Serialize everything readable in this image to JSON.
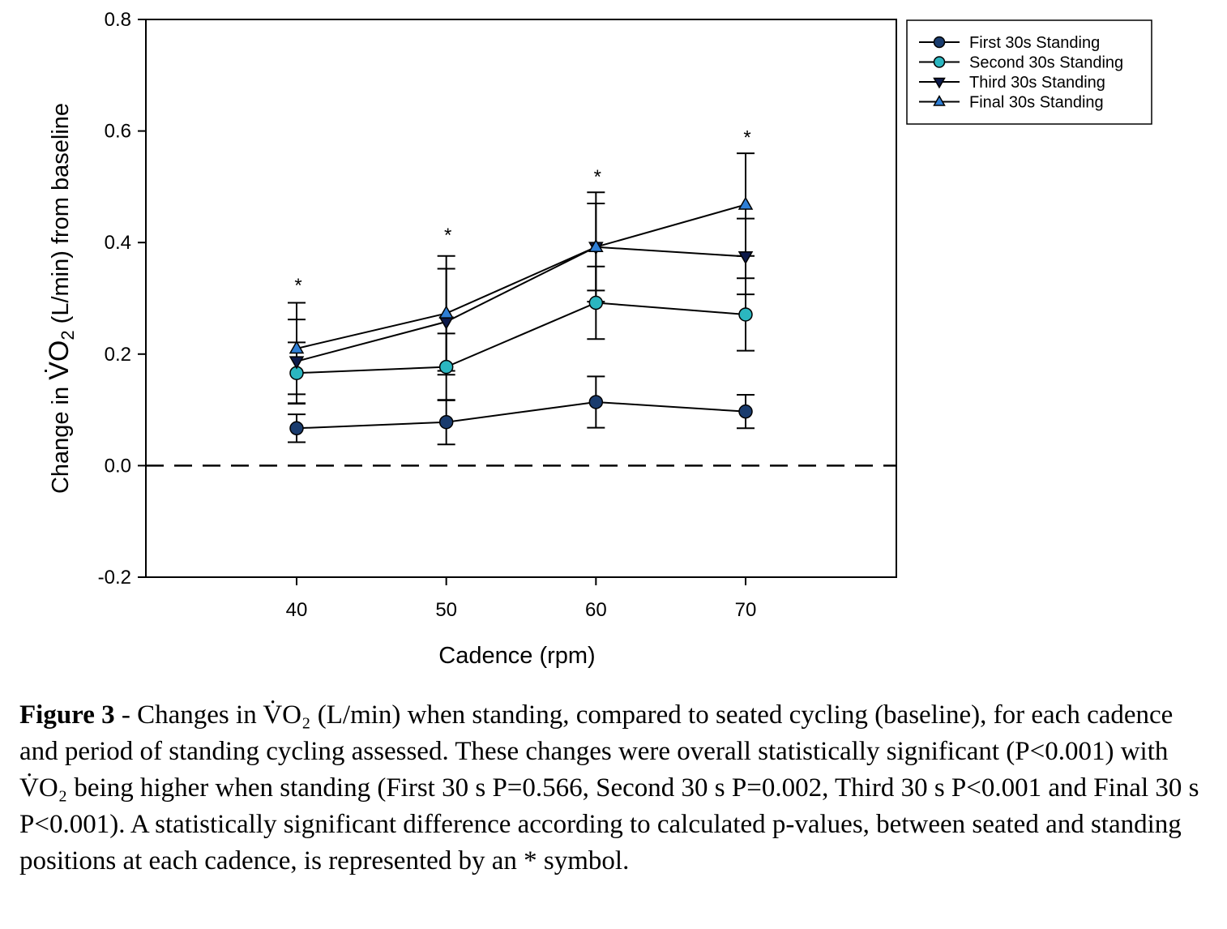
{
  "chart_data": {
    "type": "line",
    "xlabel": "Cadence (rpm)",
    "ylabel": {
      "prefix": "Change in ",
      "symbol": "V̇O",
      "subscript": "2",
      "suffix": " (L/min) from baseline"
    },
    "x": [
      40,
      50,
      60,
      70
    ],
    "xlim": [
      30,
      80
    ],
    "ylim": [
      -0.2,
      0.8
    ],
    "x_ticks": [
      "40",
      "50",
      "60",
      "70"
    ],
    "y_ticks": [
      "-0.2",
      "0.0",
      "0.2",
      "0.4",
      "0.6",
      "0.8"
    ],
    "baseline": 0.0,
    "legend_position": "top-right",
    "series": [
      {
        "name": "First 30s Standing",
        "marker": "circle",
        "color": "#1a3c6e",
        "values": [
          0.067,
          0.078,
          0.114,
          0.097
        ],
        "error": [
          0.025,
          0.04,
          0.046,
          0.03
        ]
      },
      {
        "name": "Second 30s Standing",
        "marker": "circle",
        "color": "#2bb6c0",
        "values": [
          0.166,
          0.177,
          0.292,
          0.271
        ],
        "error": [
          0.055,
          0.06,
          0.065,
          0.065
        ]
      },
      {
        "name": "Third 30s Standing",
        "marker": "triangle-down",
        "color": "#0d1a4a",
        "values": [
          0.187,
          0.258,
          0.392,
          0.375
        ],
        "error": [
          0.075,
          0.095,
          0.078,
          0.068
        ]
      },
      {
        "name": "Final 30s Standing",
        "marker": "triangle-up",
        "color": "#2f7fd6",
        "values": [
          0.21,
          0.273,
          0.392,
          0.468
        ],
        "error": [
          0.082,
          0.103,
          0.098,
          0.092
        ]
      }
    ],
    "annotations": [
      {
        "x": 40,
        "y": 0.335,
        "text": "*"
      },
      {
        "x": 50,
        "y": 0.425,
        "text": "*"
      },
      {
        "x": 60,
        "y": 0.53,
        "text": "*"
      },
      {
        "x": 70,
        "y": 0.6,
        "text": "*"
      }
    ]
  },
  "caption": {
    "label": "Figure 3",
    "text": " - Changes in V̇O₂ (L/min) when standing, compared to seated cycling (baseline), for each cadence and period of standing cycling assessed. These changes were overall statistically significant (P<0.001) with V̇O₂ being higher when standing (First 30 s P=0.566, Second 30 s P=0.002, Third 30 s P<0.001 and Final 30 s P<0.001). A statistically significant difference according to calculated p-values, between seated and standing positions at each cadence, is represented by an * symbol."
  }
}
